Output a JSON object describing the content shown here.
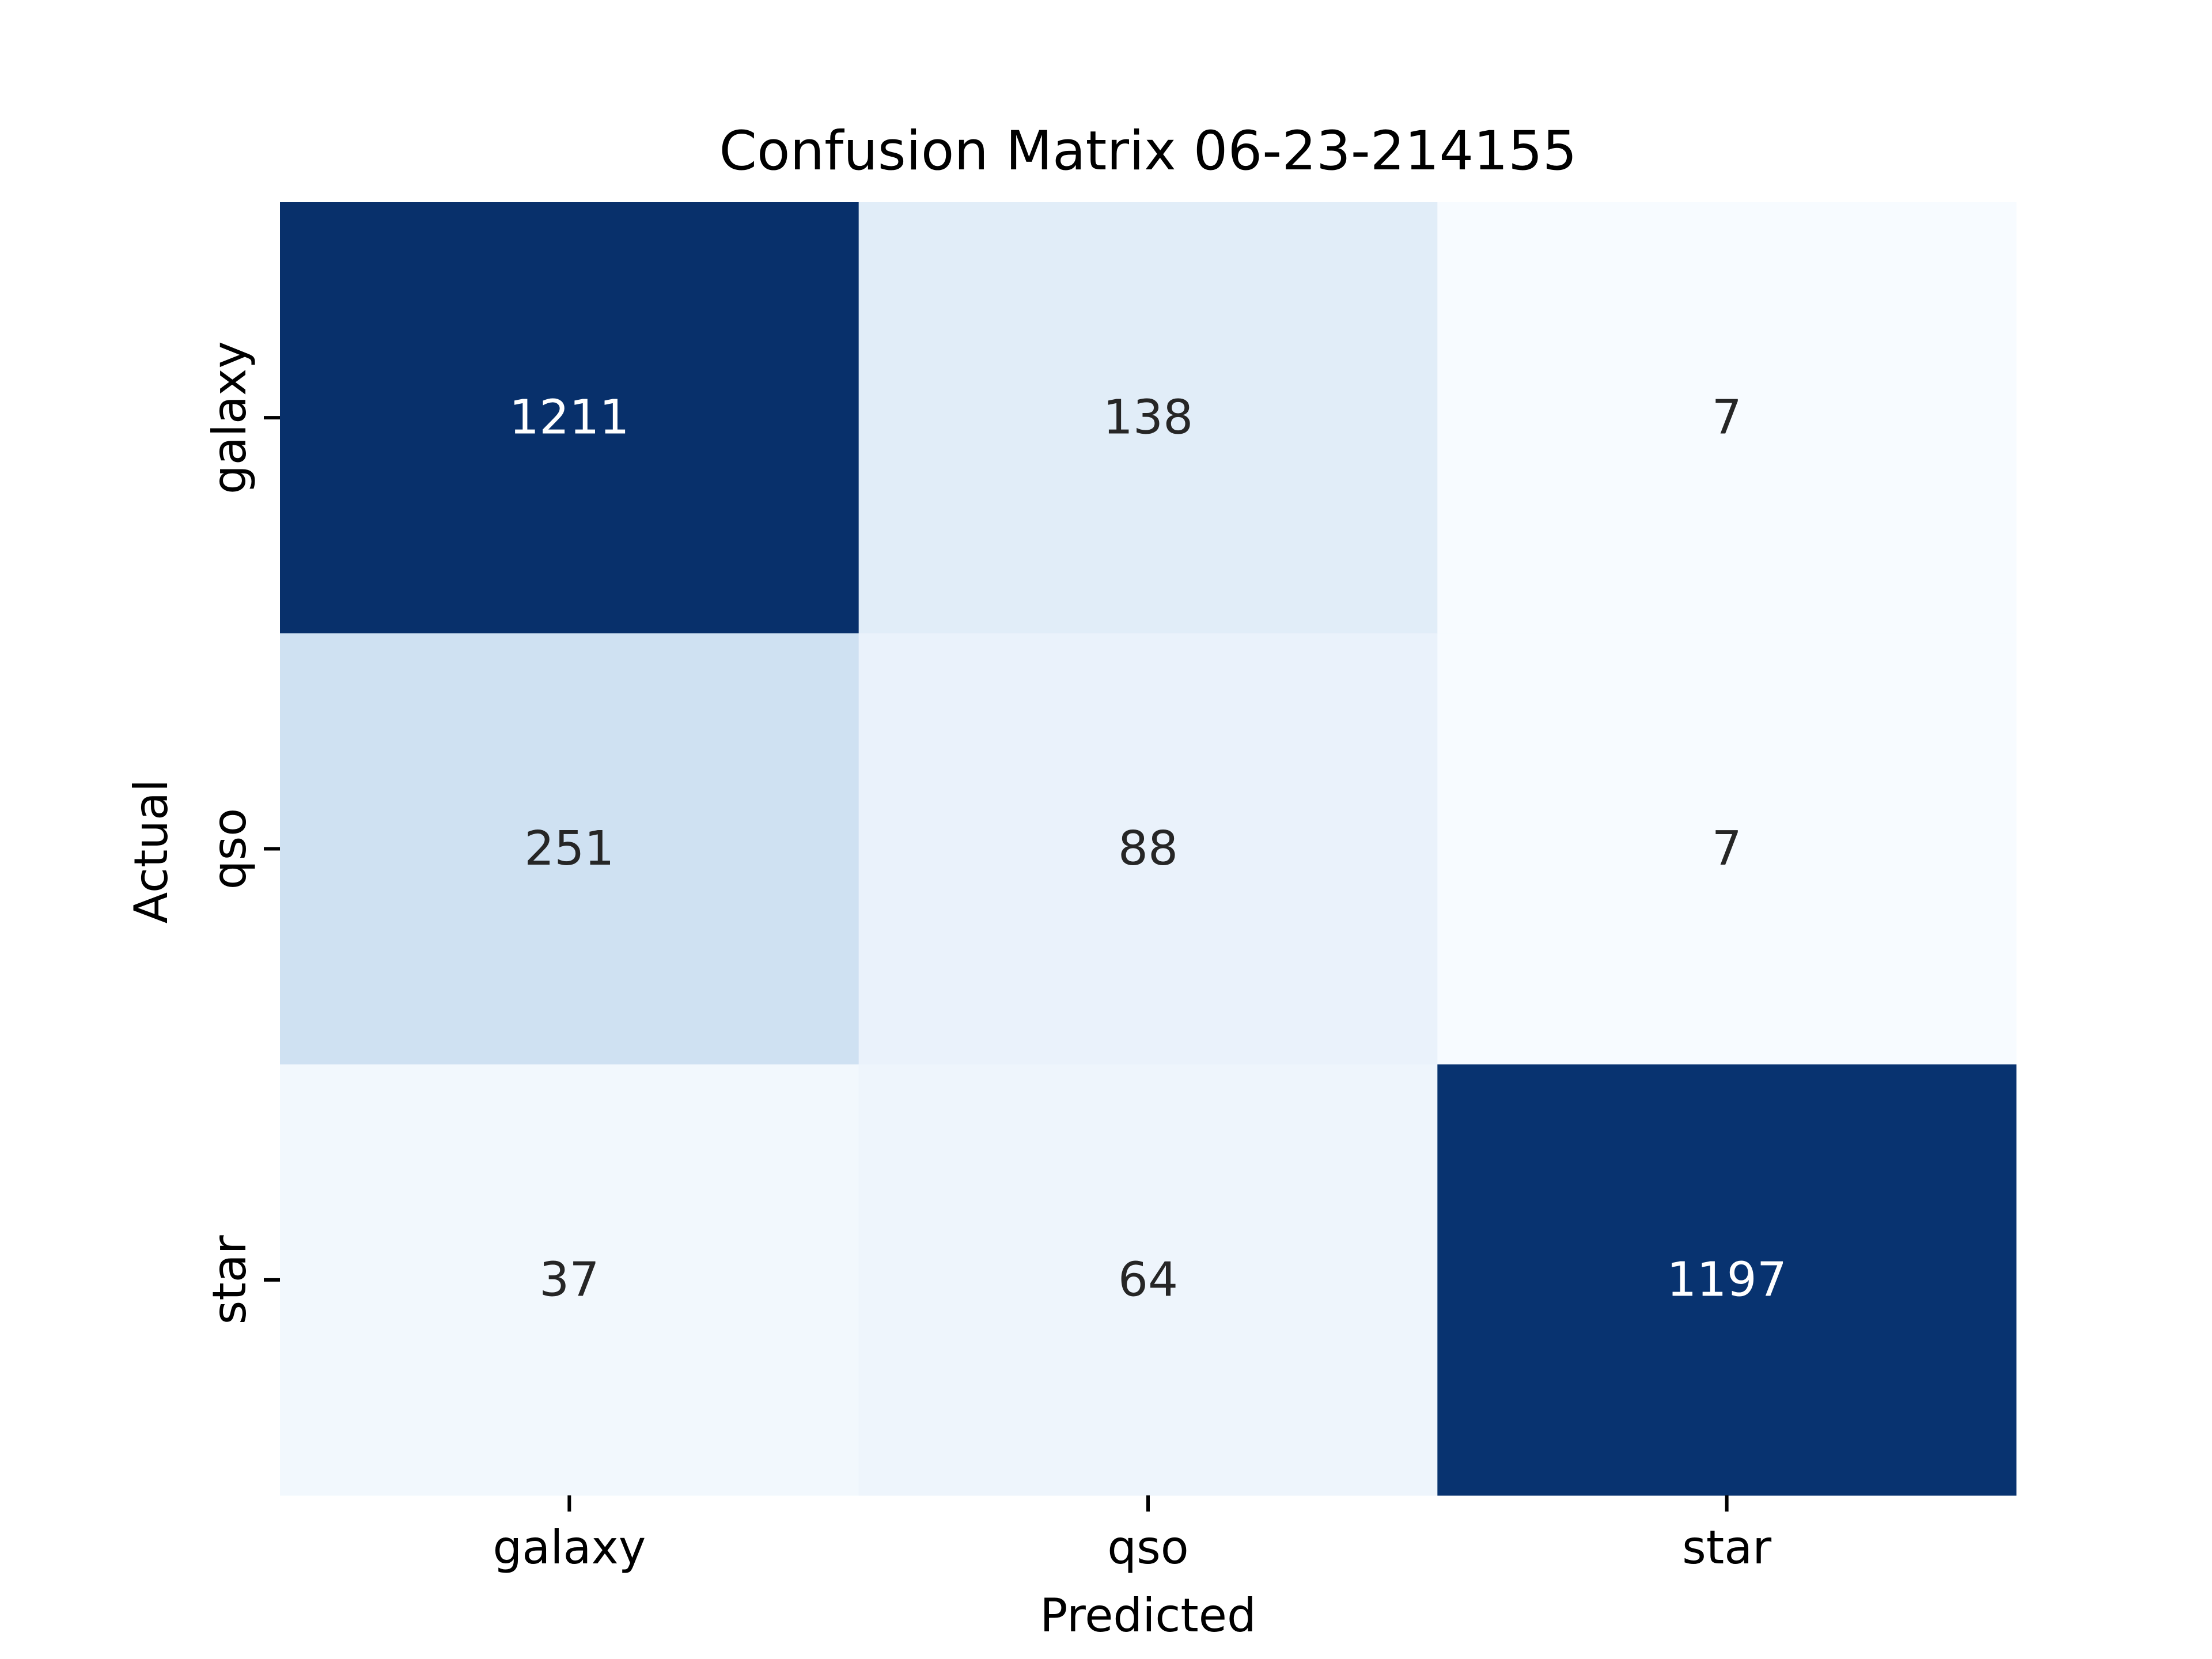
{
  "chart_data": {
    "type": "heatmap",
    "title": "Confusion Matrix 06-23-214155",
    "xlabel": "Predicted",
    "ylabel": "Actual",
    "x_categories": [
      "galaxy",
      "qso",
      "star"
    ],
    "y_categories": [
      "galaxy",
      "qso",
      "star"
    ],
    "values": [
      [
        1211,
        138,
        7
      ],
      [
        251,
        88,
        7
      ],
      [
        37,
        64,
        1197
      ]
    ],
    "colormap": "Blues",
    "color_low": "#f7fbff",
    "color_high": "#08306b",
    "text_color_light": "#ffffff",
    "text_color_dark": "#262626",
    "colorbar": false,
    "grid": false
  }
}
